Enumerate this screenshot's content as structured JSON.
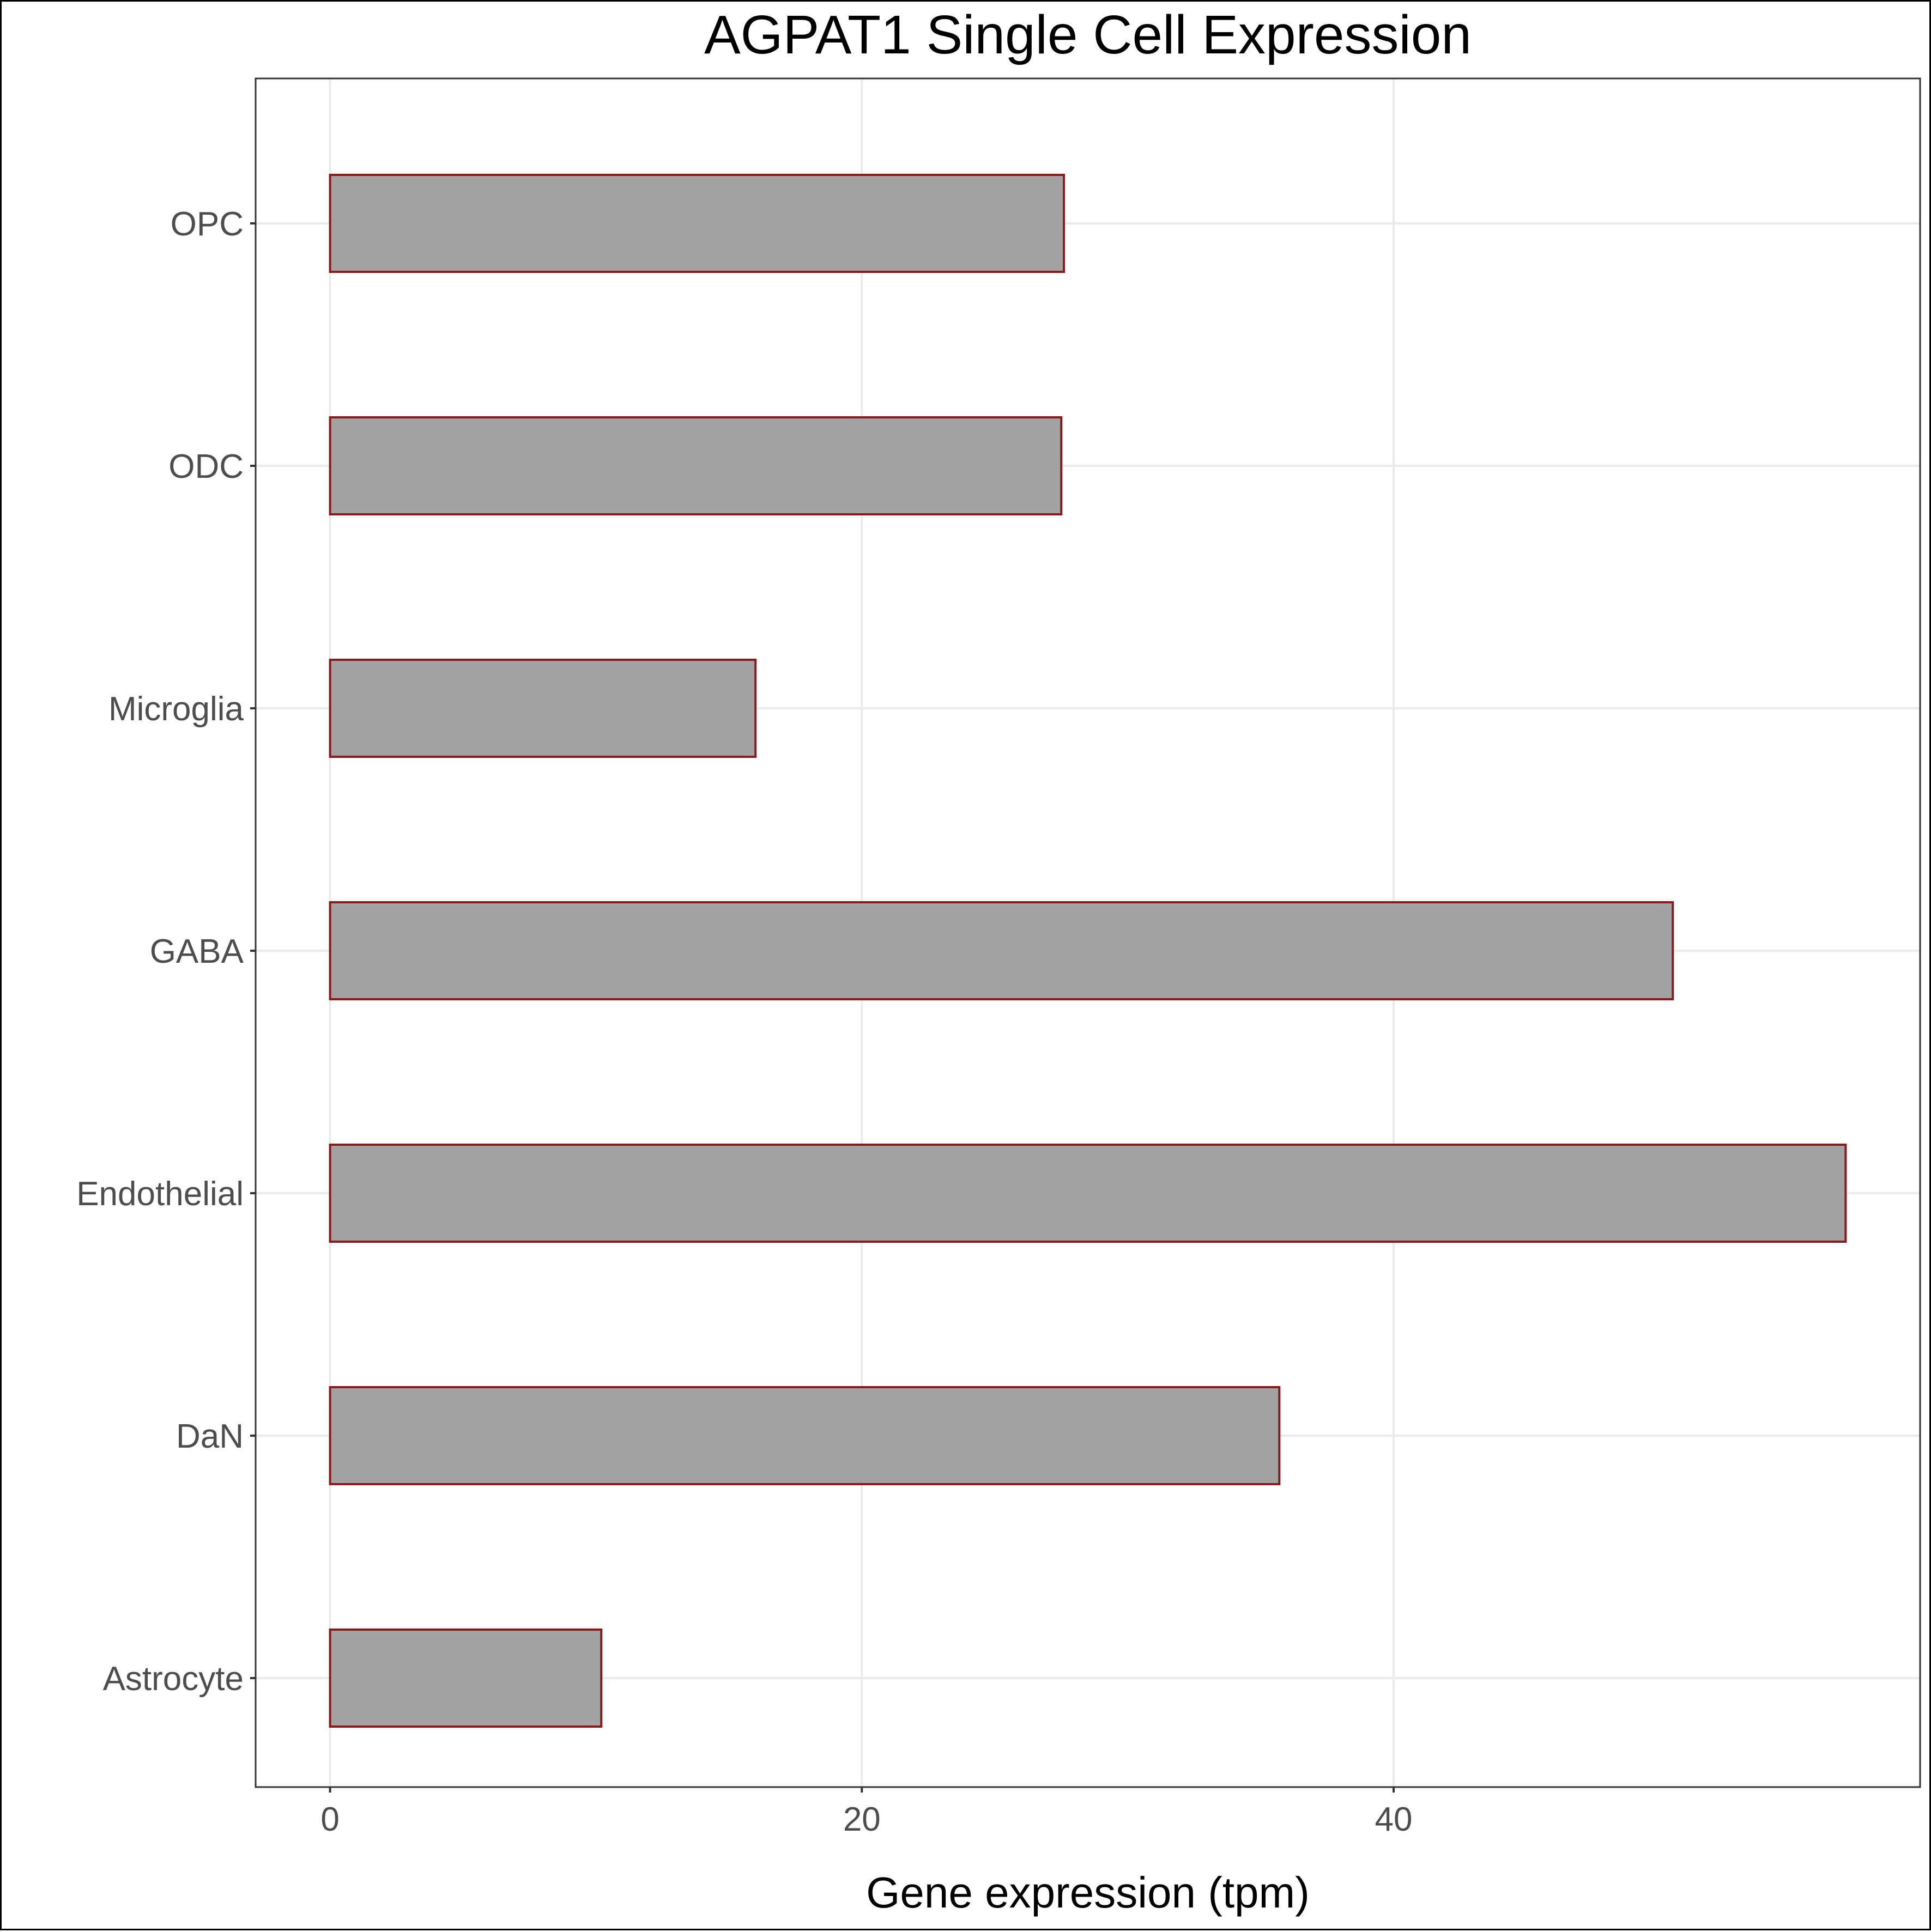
{
  "chart_data": {
    "type": "bar",
    "orientation": "horizontal",
    "title": "AGPAT1 Single Cell Expression",
    "xlabel": "Gene expression (tpm)",
    "ylabel": "",
    "categories": [
      "Astrocyte",
      "DaN",
      "Endothelial",
      "GABA",
      "Microglia",
      "ODC",
      "OPC"
    ],
    "values": [
      10.2,
      35.7,
      57.0,
      50.5,
      16.0,
      27.5,
      27.6
    ],
    "xlim": [
      -2.8,
      59.8
    ],
    "xticks": [
      "0",
      "20",
      "40"
    ],
    "xtick_values": [
      0,
      20,
      40
    ],
    "grid": true,
    "colors": {
      "bar_fill": "#a3a3a3",
      "bar_stroke": "#8b1a1a",
      "grid": "#ebebeb"
    }
  }
}
